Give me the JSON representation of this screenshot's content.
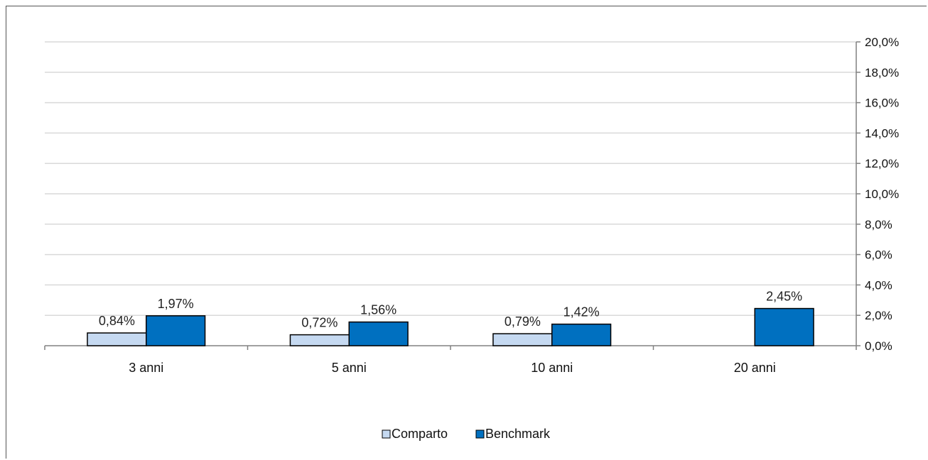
{
  "chart_data": {
    "type": "bar",
    "categories": [
      "3 anni",
      "5 anni",
      "10 anni",
      "20 anni"
    ],
    "series": [
      {
        "name": "Comparto",
        "values": [
          0.84,
          0.72,
          0.79,
          null
        ],
        "labels": [
          "0,84%",
          "0,72%",
          "0,79%",
          ""
        ],
        "color": "#c5d9f1"
      },
      {
        "name": "Benchmark",
        "values": [
          1.97,
          1.56,
          1.42,
          2.45
        ],
        "labels": [
          "1,97%",
          "1,56%",
          "1,42%",
          "2,45%"
        ],
        "color": "#0070c0"
      }
    ],
    "y_axis": {
      "position": "right",
      "min": 0,
      "max": 20,
      "step": 2,
      "tick_labels": [
        "0,0%",
        "2,0%",
        "4,0%",
        "6,0%",
        "8,0%",
        "10,0%",
        "12,0%",
        "14,0%",
        "16,0%",
        "18,0%",
        "20,0%"
      ]
    },
    "title": "",
    "xlabel": "",
    "ylabel": "",
    "grid": true,
    "legend": {
      "placement": "bottom",
      "entries": [
        "Comparto",
        "Benchmark"
      ]
    },
    "colors": {
      "grid": "#d9d9d9",
      "axis": "#808080",
      "bar_outline": "#000000"
    }
  }
}
